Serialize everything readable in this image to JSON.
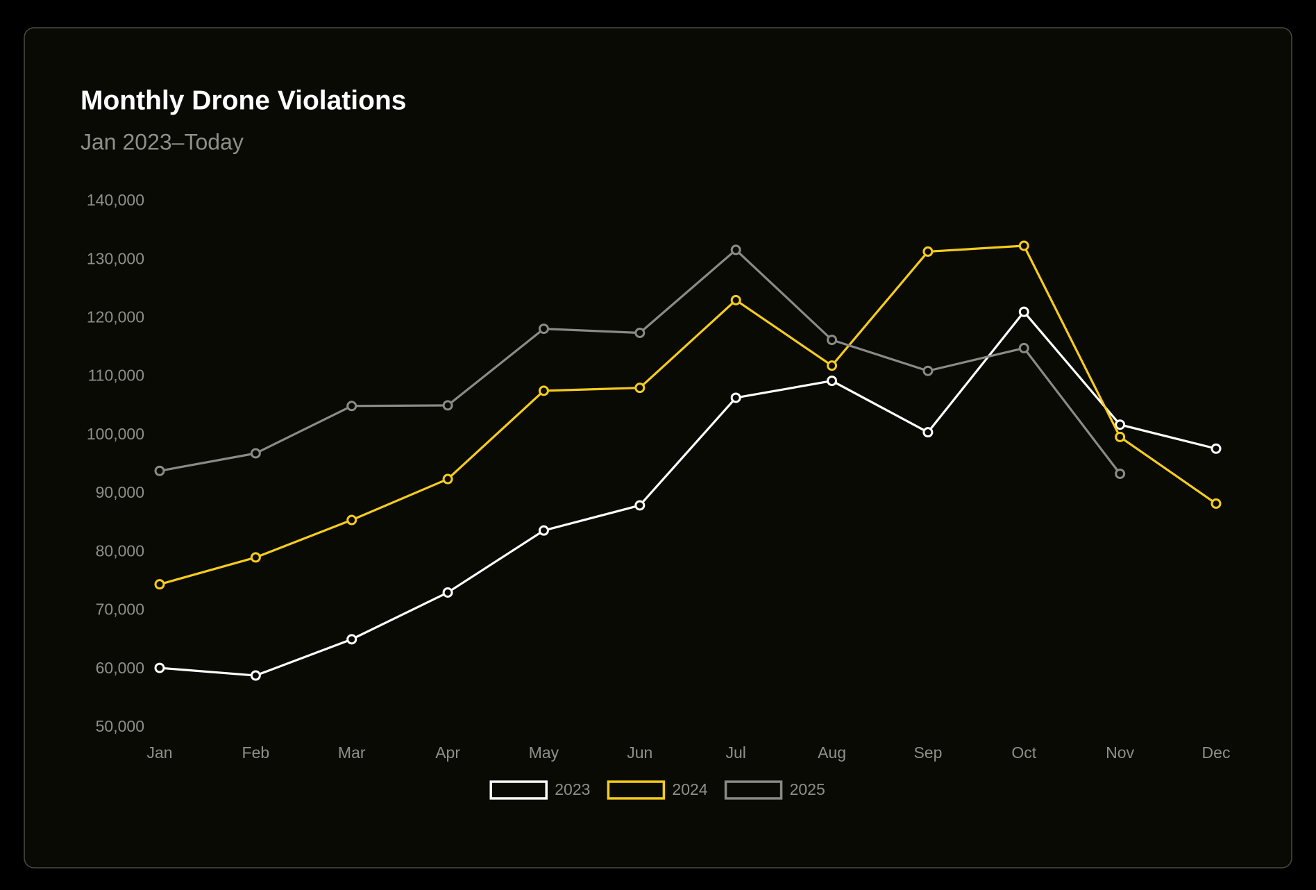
{
  "chart_data": {
    "type": "line",
    "title": "Monthly Drone Violations",
    "subtitle": "Jan 2023–Today",
    "categories": [
      "Jan",
      "Feb",
      "Mar",
      "Apr",
      "May",
      "Jun",
      "Jul",
      "Aug",
      "Sep",
      "Oct",
      "Nov",
      "Dec"
    ],
    "series": [
      {
        "name": "2023",
        "color": "#ffffff",
        "values": [
          60200,
          58900,
          65100,
          73100,
          83700,
          88000,
          106400,
          109300,
          100500,
          121100,
          101800,
          97700
        ]
      },
      {
        "name": "2024",
        "color": "#f5cc1a",
        "values": [
          74500,
          79100,
          85500,
          92500,
          107600,
          108100,
          123100,
          111900,
          131400,
          132400,
          99700,
          88300
        ]
      },
      {
        "name": "2025",
        "color": "#8a8a86",
        "values": [
          93900,
          96900,
          105000,
          105100,
          118200,
          117500,
          131700,
          116300,
          111000,
          114900,
          93400,
          null
        ]
      }
    ],
    "ylim": [
      50000,
      140000
    ],
    "yticks": [
      {
        "value": 50000,
        "label": "50,000"
      },
      {
        "value": 60000,
        "label": "60,000"
      },
      {
        "value": 70000,
        "label": "70,000"
      },
      {
        "value": 80000,
        "label": "80,000"
      },
      {
        "value": 90000,
        "label": "90,000"
      },
      {
        "value": 100000,
        "label": "100,000"
      },
      {
        "value": 110000,
        "label": "110,000"
      },
      {
        "value": 120000,
        "label": "120,000"
      },
      {
        "value": 130000,
        "label": "130,000"
      },
      {
        "value": 140000,
        "label": "140,000"
      }
    ],
    "grid": false,
    "legend": "bottom"
  }
}
